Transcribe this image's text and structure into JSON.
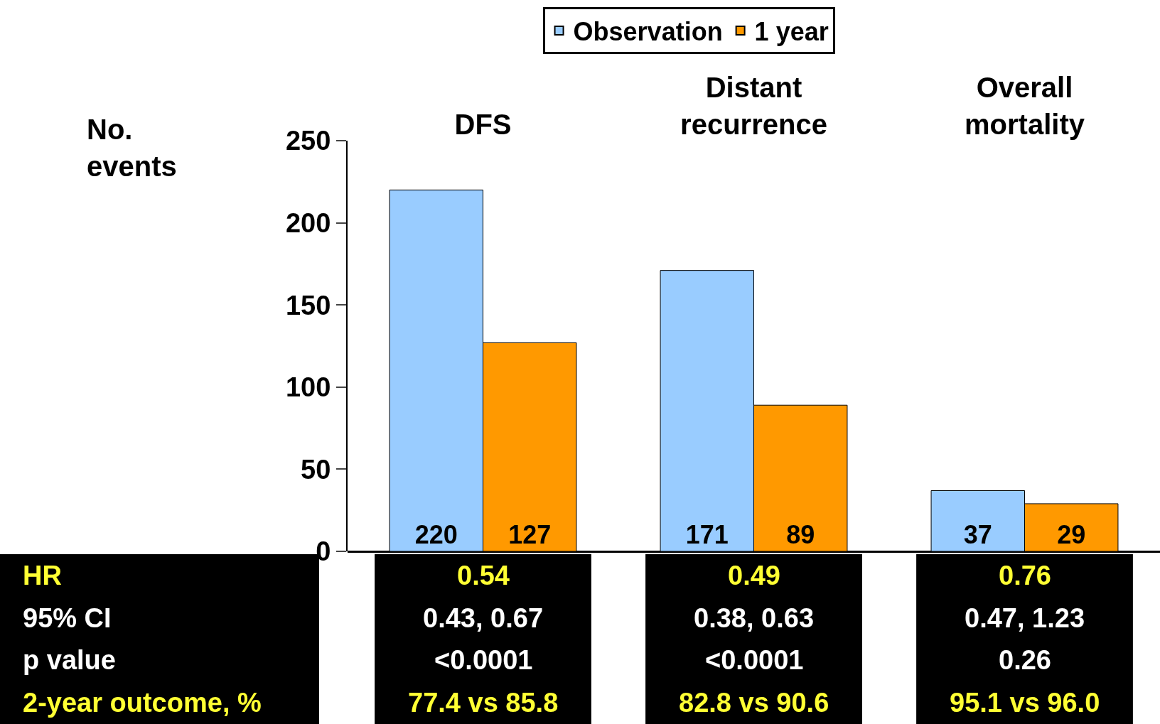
{
  "chart_data": {
    "type": "bar",
    "ylabel": "No.\nevents",
    "categories": [
      "DFS",
      "Distant\nrecurrence",
      "Overall\nmortality"
    ],
    "series": [
      {
        "name": "Observation",
        "color": "#99ccff",
        "values": [
          220,
          171,
          37
        ]
      },
      {
        "name": "1 year",
        "color": "#ff9900",
        "values": [
          127,
          89,
          29
        ]
      }
    ],
    "ylim": [
      0,
      250
    ],
    "yticks": [
      0,
      50,
      100,
      150,
      200,
      250
    ],
    "data_labels": true,
    "legend": "top",
    "annotations": [
      "HR\n95% CI\np value\n2-year outcome, %",
      "0.54\n0.43, 0.67\n<0.0001\n77.4 vs 85.8",
      "0.49\n0.38, 0.63\n<0.0001\n82.8 vs 90.6",
      "0.76\n0.47, 1.23\n0.26\n95.1 vs 96.0"
    ]
  }
}
